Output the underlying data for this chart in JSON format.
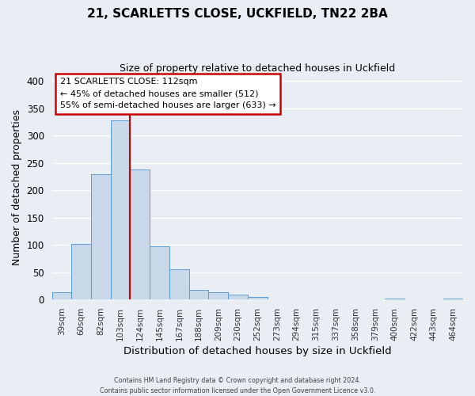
{
  "title1": "21, SCARLETTS CLOSE, UCKFIELD, TN22 2BA",
  "title2": "Size of property relative to detached houses in Uckfield",
  "xlabel": "Distribution of detached houses by size in Uckfield",
  "ylabel": "Number of detached properties",
  "bar_labels": [
    "39sqm",
    "60sqm",
    "82sqm",
    "103sqm",
    "124sqm",
    "145sqm",
    "167sqm",
    "188sqm",
    "209sqm",
    "230sqm",
    "252sqm",
    "273sqm",
    "294sqm",
    "315sqm",
    "337sqm",
    "358sqm",
    "379sqm",
    "400sqm",
    "422sqm",
    "443sqm",
    "464sqm"
  ],
  "bar_values": [
    13,
    102,
    230,
    328,
    238,
    97,
    55,
    17,
    14,
    9,
    4,
    1,
    0,
    0,
    0,
    0,
    0,
    2,
    0,
    0,
    2
  ],
  "bar_color": "#c8d8e8",
  "bar_edge_color": "#5b9bd5",
  "vline_x_index": 3,
  "vline_color": "#cc0000",
  "ylim": [
    0,
    410
  ],
  "yticks": [
    0,
    50,
    100,
    150,
    200,
    250,
    300,
    350,
    400
  ],
  "annotation_title": "21 SCARLETTS CLOSE: 112sqm",
  "annotation_line1": "← 45% of detached houses are smaller (512)",
  "annotation_line2": "55% of semi-detached houses are larger (633) →",
  "annotation_box_color": "#ffffff",
  "annotation_box_edge": "#cc0000",
  "footer1": "Contains HM Land Registry data © Crown copyright and database right 2024.",
  "footer2": "Contains public sector information licensed under the Open Government Licence v3.0.",
  "background_color": "#e8eef4",
  "grid_color": "#ffffff",
  "tick_label_color": "#333333"
}
